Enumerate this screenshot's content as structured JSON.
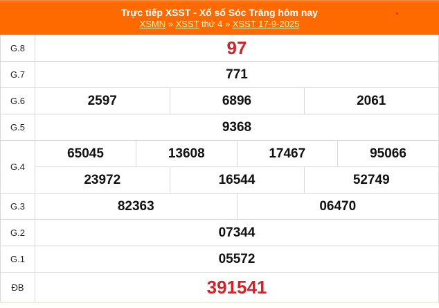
{
  "header": {
    "title": "Trực tiếp XSST - Xổ số Sóc Trăng hôm nay",
    "breadcrumb": {
      "link1": "XSMN",
      "sep1": " » ",
      "link2": "XSST",
      "text": " thứ 4 » ",
      "link3": "XSST 17-9-2025"
    }
  },
  "colors": {
    "header": "#ff6a00",
    "special": "#d2232a"
  },
  "prizes": [
    {
      "label": "G.8",
      "numbers": [
        "97"
      ]
    },
    {
      "label": "G.7",
      "numbers": [
        "771"
      ]
    },
    {
      "label": "G.6",
      "numbers": [
        "2597",
        "6896",
        "2061"
      ]
    },
    {
      "label": "G.5",
      "numbers": [
        "9368"
      ]
    },
    {
      "label": "G.4",
      "numbers": [
        "65045",
        "13608",
        "17467",
        "95066",
        "23972",
        "16544",
        "52749"
      ]
    },
    {
      "label": "G.3",
      "numbers": [
        "82363",
        "06470"
      ]
    },
    {
      "label": "G.2",
      "numbers": [
        "07344"
      ]
    },
    {
      "label": "G.1",
      "numbers": [
        "05572"
      ]
    },
    {
      "label": "ĐB",
      "numbers": [
        "391541"
      ]
    }
  ]
}
